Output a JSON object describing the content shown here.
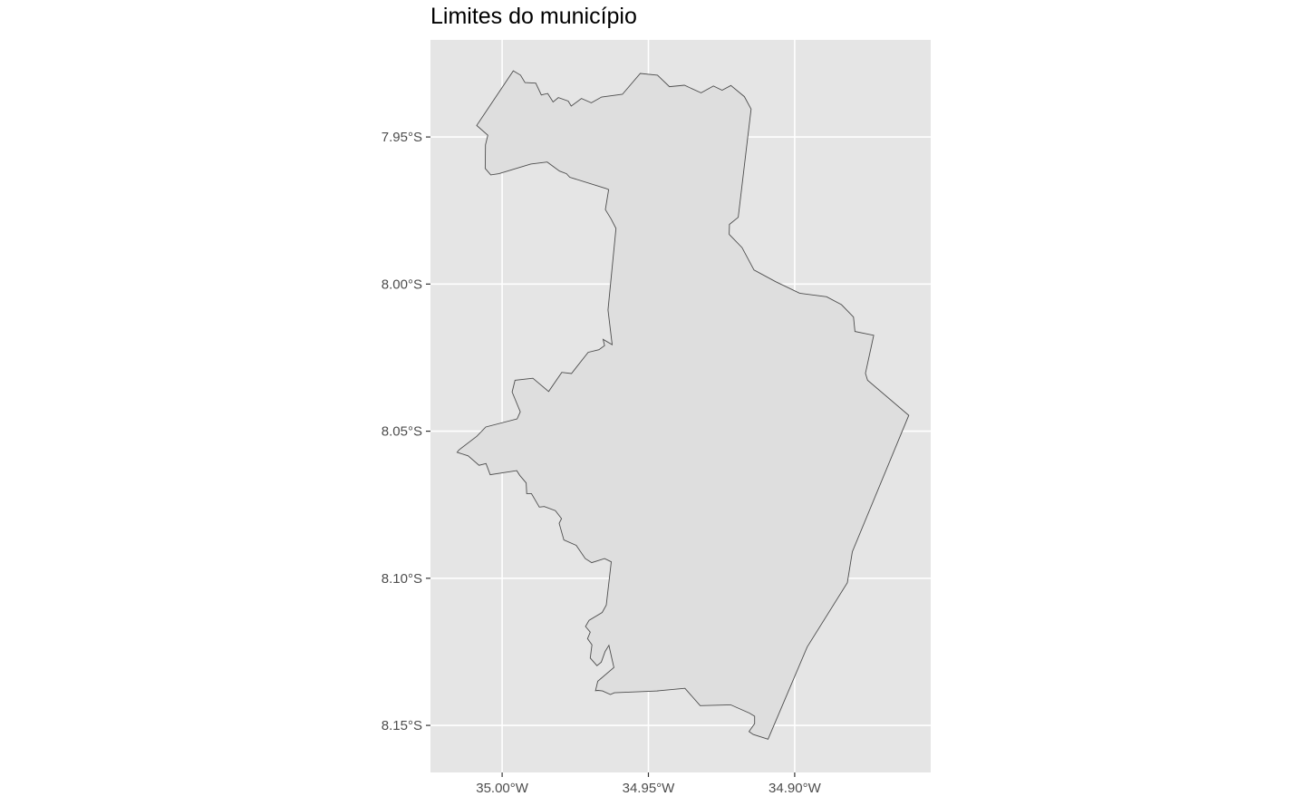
{
  "title": "Limites do município",
  "colors": {
    "panel_background": "#e5e5e5",
    "grid": "#ffffff",
    "polygon_fill": "#dedede",
    "polygon_stroke": "#4d4d4d"
  },
  "chart_data": {
    "type": "map",
    "title": "Limites do município",
    "xlim": [
      -35.0245,
      -34.8535
    ],
    "ylim": [
      -8.166,
      -7.917
    ],
    "x_ticks": [
      {
        "value": -35.0,
        "label": "35.00°W"
      },
      {
        "value": -34.95,
        "label": "34.95°W"
      },
      {
        "value": -34.9,
        "label": "34.90°W"
      }
    ],
    "y_ticks": [
      {
        "value": -7.95,
        "label": "7.95°S"
      },
      {
        "value": -8.0,
        "label": "8.00°S"
      },
      {
        "value": -8.05,
        "label": "8.05°S"
      },
      {
        "value": -8.1,
        "label": "8.10°S"
      },
      {
        "value": -8.15,
        "label": "8.15°S"
      }
    ],
    "grid": true,
    "polygon": [
      [
        -34.9962,
        -7.9275
      ],
      [
        -34.9937,
        -7.929
      ],
      [
        -34.9922,
        -7.9315
      ],
      [
        -34.9885,
        -7.9317
      ],
      [
        -34.9866,
        -7.9357
      ],
      [
        -34.9844,
        -7.9352
      ],
      [
        -34.9826,
        -7.9381
      ],
      [
        -34.9808,
        -7.9366
      ],
      [
        -34.9774,
        -7.9378
      ],
      [
        -34.9764,
        -7.9395
      ],
      [
        -34.9729,
        -7.9369
      ],
      [
        -34.9695,
        -7.9384
      ],
      [
        -34.966,
        -7.9364
      ],
      [
        -34.9589,
        -7.9355
      ],
      [
        -34.9528,
        -7.9284
      ],
      [
        -34.9469,
        -7.929
      ],
      [
        -34.9428,
        -7.9329
      ],
      [
        -34.9377,
        -7.9324
      ],
      [
        -34.932,
        -7.935
      ],
      [
        -34.9278,
        -7.9327
      ],
      [
        -34.9248,
        -7.9341
      ],
      [
        -34.9218,
        -7.9325
      ],
      [
        -34.9172,
        -7.9363
      ],
      [
        -34.9149,
        -7.9405
      ],
      [
        -34.9193,
        -7.9773
      ],
      [
        -34.9223,
        -7.9797
      ],
      [
        -34.9224,
        -7.9831
      ],
      [
        -34.918,
        -7.9876
      ],
      [
        -34.9139,
        -7.9952
      ],
      [
        -34.9065,
        -7.9992
      ],
      [
        -34.8983,
        -8.0031
      ],
      [
        -34.8891,
        -8.0043
      ],
      [
        -34.884,
        -8.007
      ],
      [
        -34.8799,
        -8.0112
      ],
      [
        -34.8794,
        -8.0161
      ],
      [
        -34.873,
        -8.0174
      ],
      [
        -34.8758,
        -8.0303
      ],
      [
        -34.8751,
        -8.0327
      ],
      [
        -34.861,
        -8.0446
      ],
      [
        -34.8803,
        -8.091
      ],
      [
        -34.882,
        -8.1015
      ],
      [
        -34.8957,
        -8.1233
      ],
      [
        -34.9091,
        -8.1547
      ],
      [
        -34.9142,
        -8.1531
      ],
      [
        -34.9156,
        -8.1521
      ],
      [
        -34.9137,
        -8.1494
      ],
      [
        -34.9137,
        -8.1469
      ],
      [
        -34.9155,
        -8.1458
      ],
      [
        -34.9219,
        -8.143
      ],
      [
        -34.9323,
        -8.1433
      ],
      [
        -34.9375,
        -8.1374
      ],
      [
        -34.9471,
        -8.1383
      ],
      [
        -34.9466,
        -8.1383
      ],
      [
        -34.9616,
        -8.1389
      ],
      [
        -34.963,
        -8.1395
      ],
      [
        -34.9657,
        -8.1383
      ],
      [
        -34.9673,
        -8.1381
      ],
      [
        -34.9681,
        -8.1382
      ],
      [
        -34.9673,
        -8.135
      ],
      [
        -34.9618,
        -8.1303
      ],
      [
        -34.9625,
        -8.1272
      ],
      [
        -34.9635,
        -8.1228
      ],
      [
        -34.9648,
        -8.1249
      ],
      [
        -34.9661,
        -8.1285
      ],
      [
        -34.9676,
        -8.1297
      ],
      [
        -34.9699,
        -8.1271
      ],
      [
        -34.9693,
        -8.1226
      ],
      [
        -34.9708,
        -8.1205
      ],
      [
        -34.9699,
        -8.1183
      ],
      [
        -34.9715,
        -8.1164
      ],
      [
        -34.9703,
        -8.1143
      ],
      [
        -34.9658,
        -8.1116
      ],
      [
        -34.9644,
        -8.1091
      ],
      [
        -34.9627,
        -8.0944
      ],
      [
        -34.965,
        -8.0933
      ],
      [
        -34.9694,
        -8.0947
      ],
      [
        -34.9716,
        -8.0933
      ],
      [
        -34.9747,
        -8.0888
      ],
      [
        -34.9789,
        -8.087
      ],
      [
        -34.9805,
        -8.0813
      ],
      [
        -34.9797,
        -8.0797
      ],
      [
        -34.9818,
        -8.077
      ],
      [
        -34.9856,
        -8.0756
      ],
      [
        -34.9873,
        -8.0758
      ],
      [
        -34.99,
        -8.0712
      ],
      [
        -34.9916,
        -8.0712
      ],
      [
        -34.9918,
        -8.0676
      ],
      [
        -34.9935,
        -8.0656
      ],
      [
        -34.994,
        -8.065
      ],
      [
        -34.995,
        -8.0634
      ],
      [
        -35.0041,
        -8.0648
      ],
      [
        -35.0055,
        -8.061
      ],
      [
        -35.0079,
        -8.0616
      ],
      [
        -35.0116,
        -8.0584
      ],
      [
        -35.0154,
        -8.0572
      ],
      [
        -35.0148,
        -8.0564
      ],
      [
        -35.0086,
        -8.0517
      ],
      [
        -35.0056,
        -8.0486
      ],
      [
        -34.9949,
        -8.0458
      ],
      [
        -34.9938,
        -8.0434
      ],
      [
        -34.9966,
        -8.0367
      ],
      [
        -34.9956,
        -8.0327
      ],
      [
        -34.9895,
        -8.032
      ],
      [
        -34.9841,
        -8.0365
      ],
      [
        -34.9796,
        -8.03
      ],
      [
        -34.9763,
        -8.0304
      ],
      [
        -34.9706,
        -8.0232
      ],
      [
        -34.9669,
        -8.0223
      ],
      [
        -34.965,
        -8.0209
      ],
      [
        -34.9655,
        -8.0188
      ],
      [
        -34.9624,
        -8.0206
      ],
      [
        -34.9638,
        -8.0088
      ],
      [
        -34.9611,
        -7.9811
      ],
      [
        -34.9628,
        -7.9778
      ],
      [
        -34.9647,
        -7.9747
      ],
      [
        -34.9636,
        -7.9679
      ],
      [
        -34.9645,
        -7.9675
      ],
      [
        -34.9769,
        -7.9637
      ],
      [
        -34.978,
        -7.9625
      ],
      [
        -34.9804,
        -7.9616
      ],
      [
        -34.9846,
        -7.9585
      ],
      [
        -34.9902,
        -7.9592
      ],
      [
        -35.0011,
        -7.9625
      ],
      [
        -35.0039,
        -7.9629
      ],
      [
        -35.0058,
        -7.9607
      ],
      [
        -35.0057,
        -7.9527
      ],
      [
        -35.0049,
        -7.9494
      ],
      [
        -35.0087,
        -7.9461
      ],
      [
        -34.9962,
        -7.9275
      ]
    ]
  }
}
